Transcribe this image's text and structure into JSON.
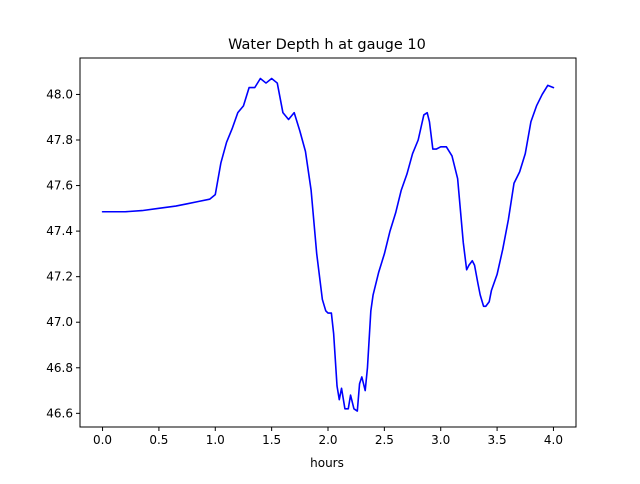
{
  "chart_data": {
    "type": "line",
    "title": "Water Depth h at gauge 10",
    "xlabel": "hours",
    "ylabel": "",
    "xlim": [
      -0.2,
      4.2
    ],
    "ylim": [
      46.54,
      48.16
    ],
    "xticks": [
      0.0,
      0.5,
      1.0,
      1.5,
      2.0,
      2.5,
      3.0,
      3.5,
      4.0
    ],
    "xtick_labels": [
      "0.0",
      "0.5",
      "1.0",
      "1.5",
      "2.0",
      "2.5",
      "3.0",
      "3.5",
      "4.0"
    ],
    "yticks": [
      46.6,
      46.8,
      47.0,
      47.2,
      47.4,
      47.6,
      47.8,
      48.0
    ],
    "ytick_labels": [
      "46.6",
      "46.8",
      "47.0",
      "47.2",
      "47.4",
      "47.6",
      "47.8",
      "48.0"
    ],
    "grid": false,
    "legend": "none",
    "series": [
      {
        "color": "#0000ff",
        "x": [
          0.0,
          0.2,
          0.35,
          0.5,
          0.65,
          0.75,
          0.85,
          0.95,
          1.0,
          1.05,
          1.1,
          1.15,
          1.2,
          1.25,
          1.3,
          1.35,
          1.4,
          1.45,
          1.5,
          1.55,
          1.6,
          1.65,
          1.7,
          1.75,
          1.8,
          1.85,
          1.9,
          1.95,
          1.98,
          2.0,
          2.03,
          2.05,
          2.08,
          2.1,
          2.12,
          2.15,
          2.18,
          2.2,
          2.23,
          2.26,
          2.28,
          2.3,
          2.33,
          2.35,
          2.38,
          2.4,
          2.45,
          2.5,
          2.55,
          2.6,
          2.65,
          2.7,
          2.75,
          2.8,
          2.85,
          2.88,
          2.9,
          2.93,
          2.96,
          3.0,
          3.05,
          3.1,
          3.15,
          3.2,
          3.23,
          3.25,
          3.28,
          3.3,
          3.33,
          3.35,
          3.38,
          3.4,
          3.43,
          3.45,
          3.5,
          3.55,
          3.6,
          3.65,
          3.7,
          3.75,
          3.8,
          3.85,
          3.9,
          3.95,
          4.0
        ],
        "y": [
          47.485,
          47.485,
          47.49,
          47.5,
          47.51,
          47.52,
          47.53,
          47.54,
          47.56,
          47.7,
          47.79,
          47.85,
          47.92,
          47.95,
          48.03,
          48.03,
          48.07,
          48.05,
          48.07,
          48.05,
          47.92,
          47.89,
          47.92,
          47.84,
          47.75,
          47.58,
          47.3,
          47.1,
          47.05,
          47.04,
          47.04,
          46.95,
          46.72,
          46.66,
          46.71,
          46.62,
          46.62,
          46.68,
          46.62,
          46.61,
          46.73,
          46.76,
          46.7,
          46.8,
          47.05,
          47.12,
          47.22,
          47.3,
          47.4,
          47.48,
          47.58,
          47.65,
          47.74,
          47.8,
          47.91,
          47.92,
          47.88,
          47.76,
          47.76,
          47.77,
          47.77,
          47.73,
          47.63,
          47.35,
          47.23,
          47.25,
          47.27,
          47.25,
          47.17,
          47.12,
          47.07,
          47.07,
          47.09,
          47.14,
          47.21,
          47.32,
          47.45,
          47.61,
          47.66,
          47.74,
          47.88,
          47.95,
          48.0,
          48.04,
          48.03
        ]
      }
    ]
  }
}
